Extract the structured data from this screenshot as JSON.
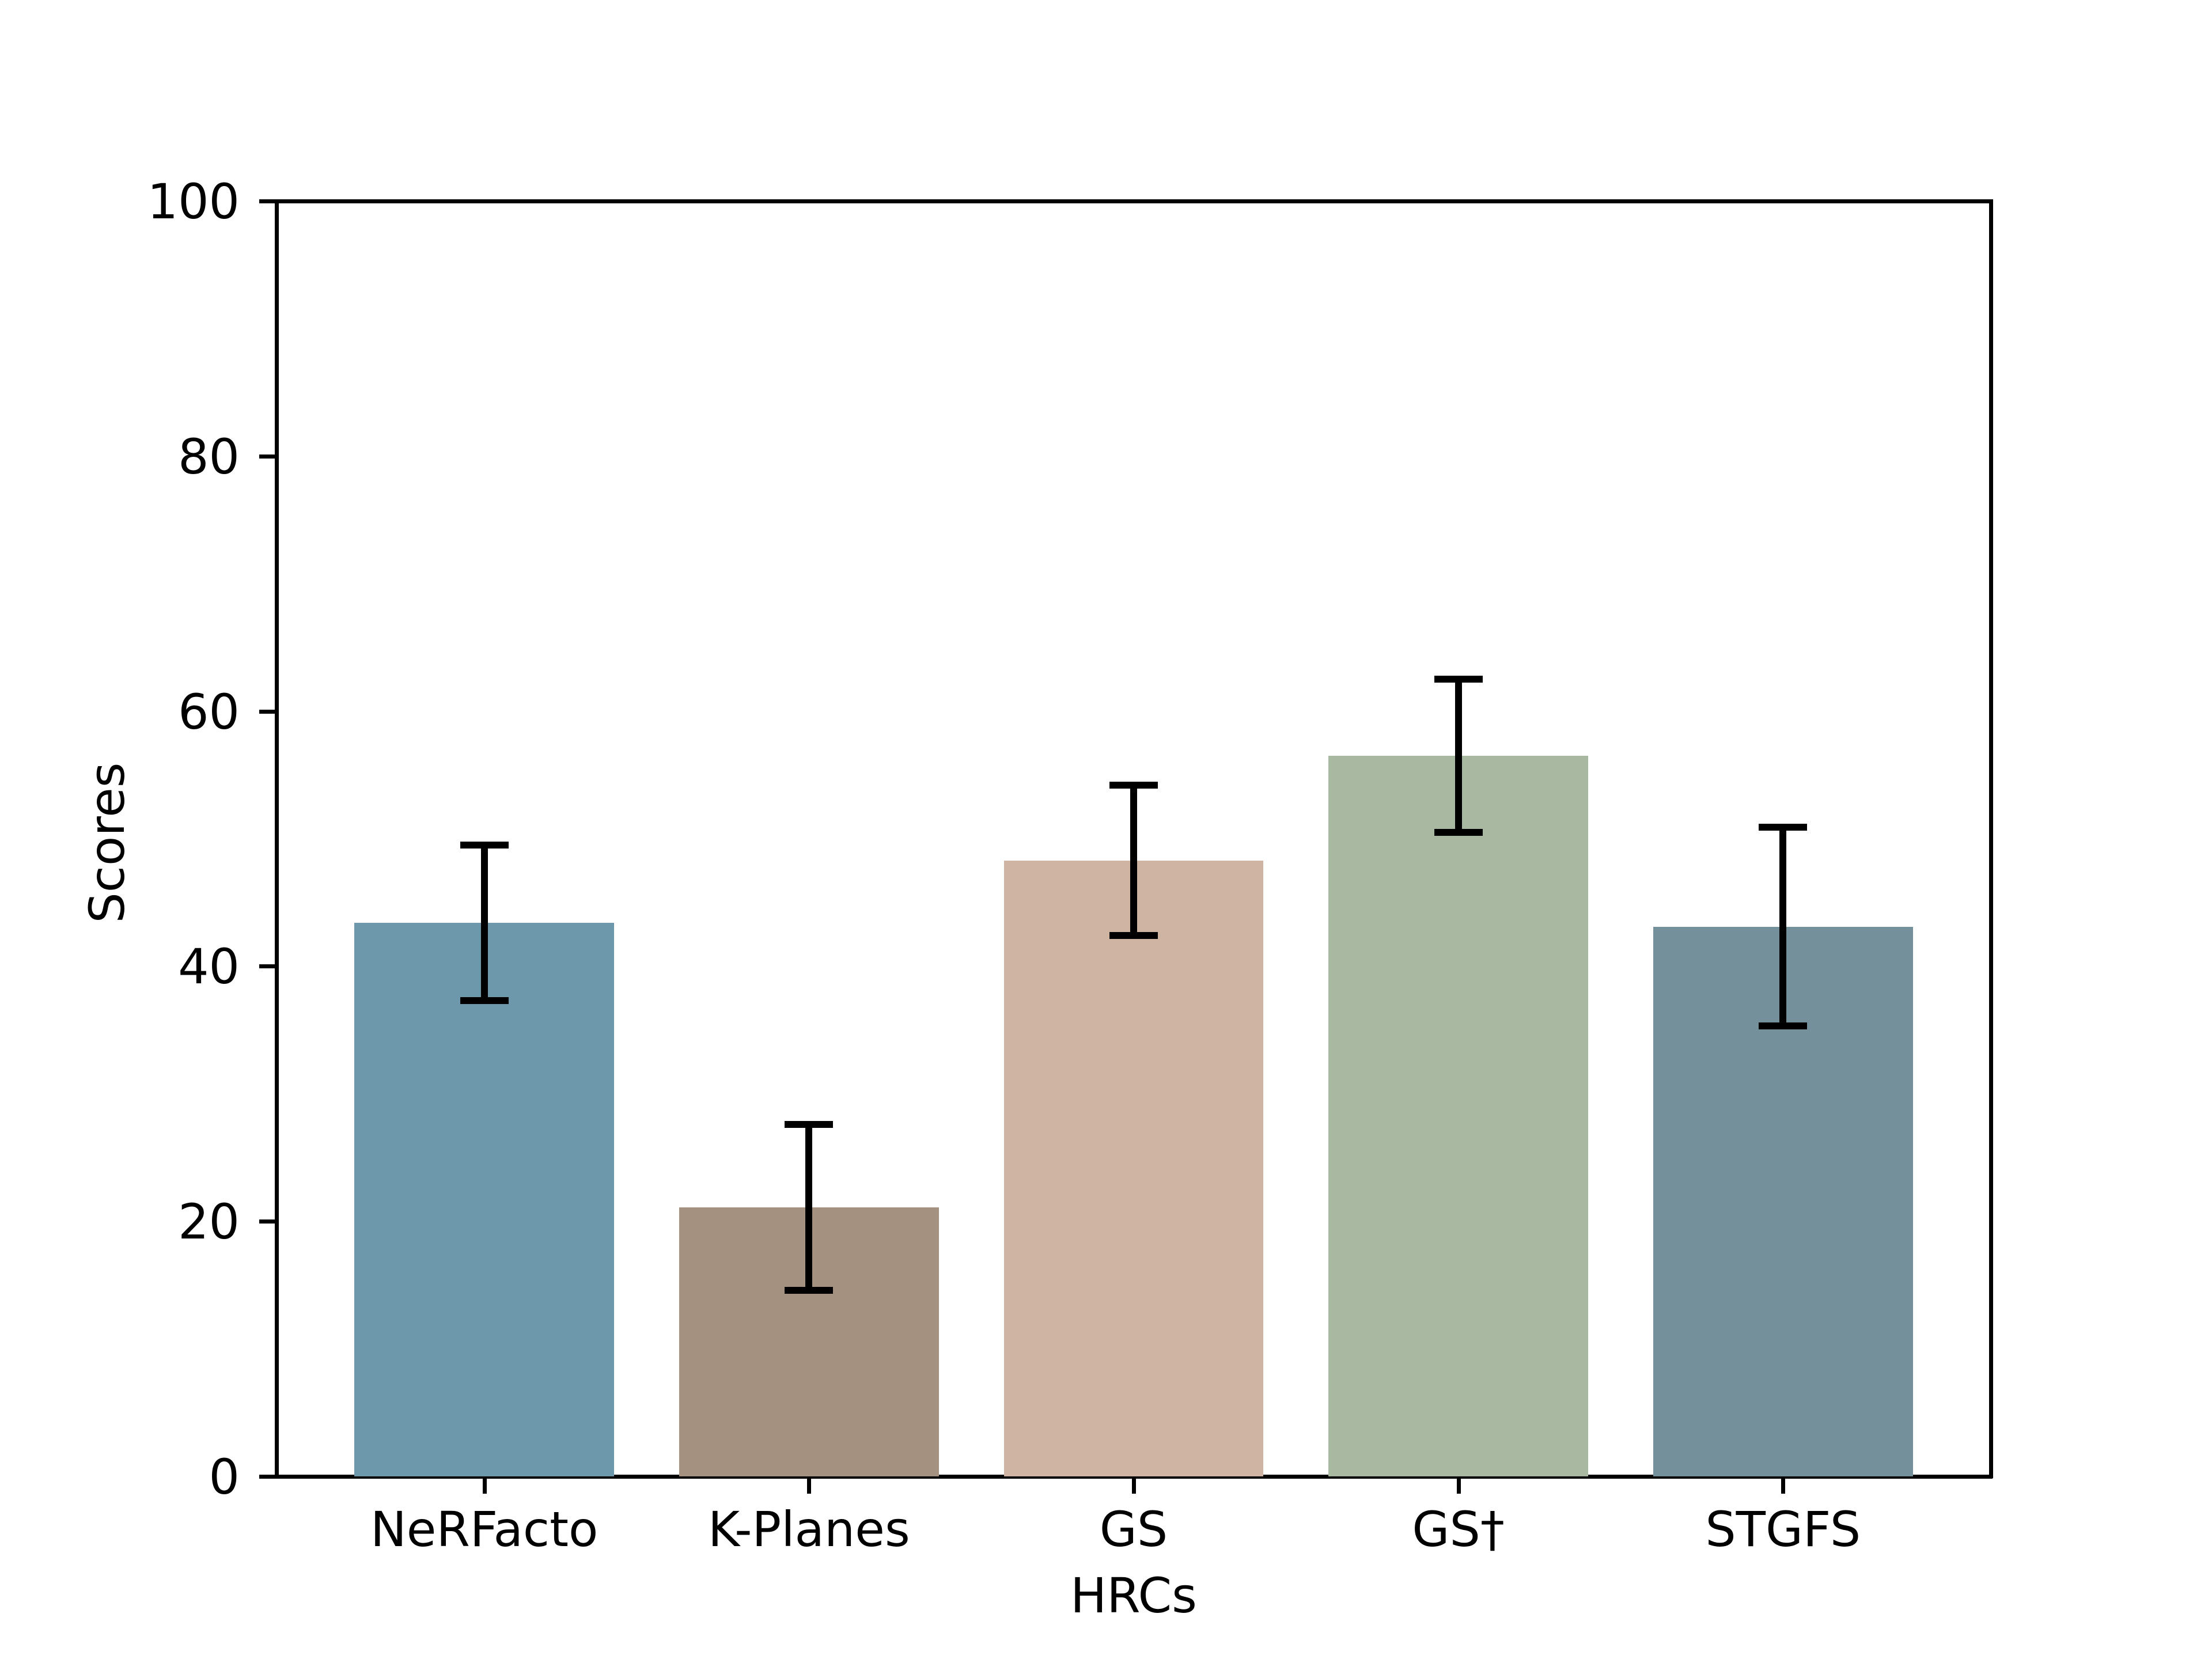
{
  "figure": {
    "background": "#ffffff",
    "text_color": "#000000"
  },
  "chart_data": {
    "type": "bar",
    "title": "",
    "xlabel": "HRCs",
    "ylabel": "Scores",
    "categories": [
      "NeRFacto",
      "K-Planes",
      "GS",
      "GS†",
      "STGFS"
    ],
    "values": [
      43.4,
      21.1,
      48.3,
      56.5,
      43.1
    ],
    "error_bars": {
      "type": "symmetric",
      "values": [
        6.1,
        6.5,
        5.9,
        6.0,
        7.8
      ]
    },
    "bar_colors": [
      "#6d97aa",
      "#a5917f",
      "#cfb4a3",
      "#a9b9a1",
      "#74909a"
    ],
    "error_color": "#000000",
    "ylim": [
      0,
      100
    ],
    "yticks": [
      0,
      20,
      40,
      60,
      80,
      100
    ],
    "bar_width_fraction": 0.8,
    "grid": false,
    "legend": false
  }
}
